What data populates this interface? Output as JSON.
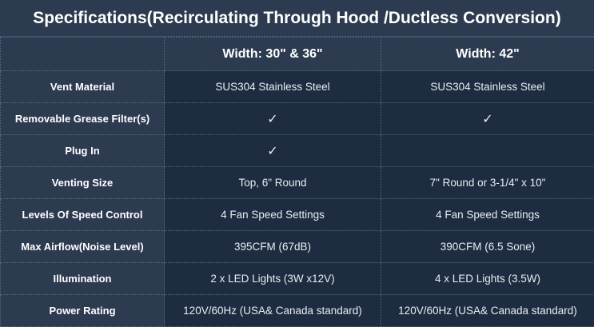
{
  "title": "Specifications(Recirculating Through Hood /Ductless Conversion)",
  "columns": [
    "",
    "Width: 30\" & 36\"",
    "Width: 42\""
  ],
  "rows": [
    {
      "label": "Vent Material",
      "values": [
        "SUS304 Stainless Steel",
        "SUS304 Stainless Steel"
      ]
    },
    {
      "label": "Removable Grease Filter(s)",
      "values": [
        "✓",
        "✓"
      ]
    },
    {
      "label": "Plug In",
      "values": [
        "✓",
        ""
      ]
    },
    {
      "label": "Venting Size",
      "values": [
        "Top, 6\" Round",
        "7\" Round or 3-1/4\" x 10\""
      ]
    },
    {
      "label": "Levels Of Speed Control",
      "values": [
        "4 Fan Speed Settings",
        "4 Fan Speed Settings"
      ]
    },
    {
      "label": "Max Airflow(Noise Level)",
      "values": [
        "395CFM (67dB)",
        "390CFM (6.5 Sone)"
      ]
    },
    {
      "label": "Illumination",
      "values": [
        "2 x  LED Lights (3W x12V)",
        "4 x LED Lights (3.5W)"
      ]
    },
    {
      "label": "Power Rating",
      "values": [
        "120V/60Hz (USA& Canada standard)",
        "120V/60Hz (USA& Canada standard)"
      ]
    }
  ]
}
